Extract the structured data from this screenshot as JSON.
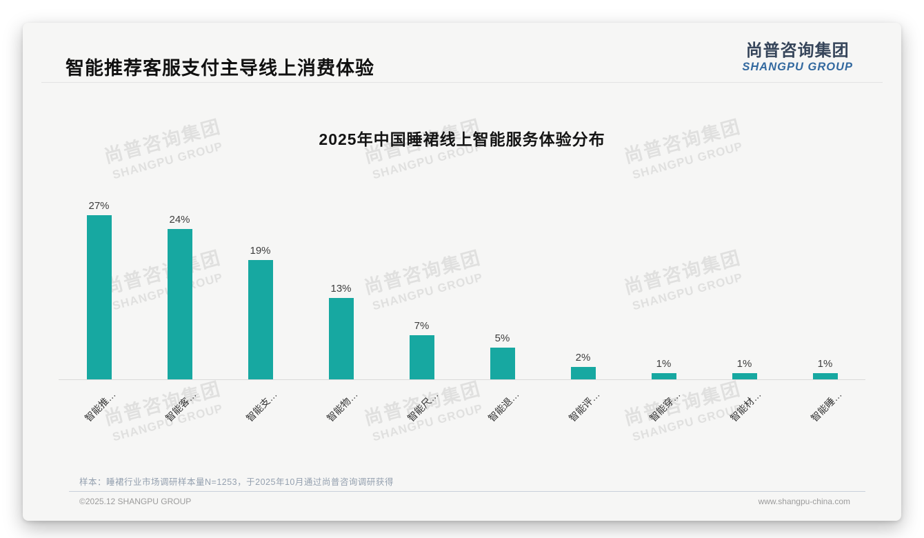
{
  "page": {
    "title": "智能推荐客服支付主导线上消费体验",
    "logo": {
      "cn": "尚普咨询集团",
      "en": "SHANGPU GROUP"
    },
    "watermark": {
      "cn": "尚普咨询集团",
      "en": "SHANGPU GROUP"
    },
    "footer": {
      "note": "样本：睡裙行业市场调研样本量N=1253，于2025年10月通过尚普咨询调研获得",
      "copyright": "©2025.12 SHANGPU GROUP",
      "website": "www.shangpu-china.com"
    }
  },
  "chart_data": {
    "type": "bar",
    "title": "2025年中国睡裙线上智能服务体验分布",
    "categories": [
      "智能推…",
      "智能客…",
      "智能支…",
      "智能物…",
      "智能尺…",
      "智能退…",
      "智能评…",
      "智能穿…",
      "智能材…",
      "智能睡…"
    ],
    "values": [
      27,
      24,
      19,
      13,
      7,
      5,
      2,
      1,
      1,
      1
    ],
    "value_labels": [
      "27%",
      "24%",
      "19%",
      "13%",
      "7%",
      "5%",
      "2%",
      "1%",
      "1%",
      "1%"
    ],
    "unit": "%",
    "bar_color": "#17a8a1",
    "ylim": [
      0,
      30
    ],
    "xlabel": "",
    "ylabel": "",
    "grid": false,
    "legend": "none",
    "bar_label_position": "top",
    "x_label_rotation": -45
  }
}
